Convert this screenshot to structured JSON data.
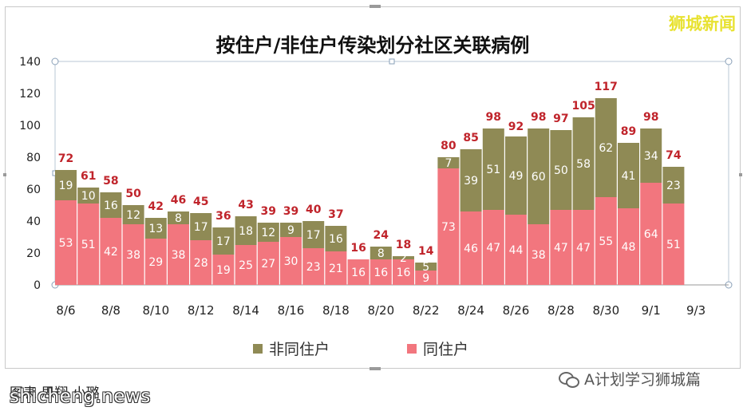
{
  "brand": "狮城新闻",
  "source_line": "图表 思翔 小璐",
  "watermark": "shicheng.news",
  "wechat_account": "A计划学习狮城篇",
  "colors": {
    "non_household": "#8f8a55",
    "household": "#f2767e",
    "label_red": "#c0242b",
    "label_white": "#ffffff"
  },
  "chart_data": {
    "type": "bar",
    "stacked": true,
    "title": "按住户/非住户传染划分社区关联病例",
    "categories": [
      "8/6",
      "8/7",
      "8/8",
      "8/9",
      "8/10",
      "8/11",
      "8/12",
      "8/13",
      "8/14",
      "8/15",
      "8/16",
      "8/17",
      "8/18",
      "8/19",
      "8/20",
      "8/21",
      "8/22",
      "8/23",
      "8/24",
      "8/25",
      "8/26",
      "8/27",
      "8/28",
      "8/29",
      "8/30",
      "8/31",
      "9/1",
      "9/2"
    ],
    "x_tick_labels": [
      "8/6",
      "8/8",
      "8/10",
      "8/12",
      "8/14",
      "8/16",
      "8/18",
      "8/20",
      "8/22",
      "8/24",
      "8/26",
      "8/28",
      "8/30",
      "9/1",
      "9/3"
    ],
    "series": [
      {
        "name": "同住户",
        "values": [
          53,
          51,
          42,
          38,
          29,
          38,
          28,
          19,
          25,
          27,
          30,
          23,
          21,
          16,
          16,
          16,
          9,
          73,
          46,
          47,
          44,
          38,
          47,
          47,
          55,
          48,
          64,
          51
        ]
      },
      {
        "name": "非同住户",
        "values": [
          19,
          10,
          16,
          12,
          13,
          8,
          17,
          17,
          18,
          12,
          9,
          17,
          16,
          0,
          8,
          2,
          5,
          7,
          39,
          51,
          49,
          60,
          50,
          58,
          62,
          41,
          34,
          23
        ]
      }
    ],
    "totals": [
      72,
      61,
      58,
      50,
      42,
      46,
      45,
      36,
      43,
      39,
      39,
      40,
      37,
      16,
      24,
      18,
      14,
      80,
      85,
      98,
      92,
      98,
      97,
      105,
      117,
      89,
      98,
      74
    ],
    "legend": [
      "非同住户",
      "同住户"
    ],
    "legend_position": "bottom",
    "ylim": [
      0,
      140
    ],
    "yticks": [
      0,
      20,
      40,
      60,
      80,
      100,
      120,
      140
    ],
    "grid": false
  }
}
